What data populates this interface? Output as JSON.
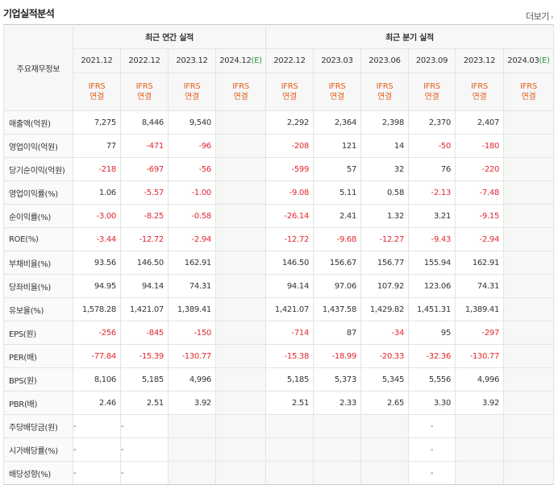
{
  "header": {
    "title": "기업실적분석",
    "more_label": "더보기",
    "more_arrow": "›"
  },
  "table": {
    "row_label_header": "주요재무정보",
    "groups": {
      "annual": "최근 연간 실적",
      "quarterly": "최근 분기 실적"
    },
    "annual_periods": [
      "2021.12",
      "2022.12",
      "2023.12",
      "2024.12"
    ],
    "annual_est_suffix": "(E)",
    "quarter_periods": [
      "2022.12",
      "2023.03",
      "2023.06",
      "2023.09",
      "2023.12",
      "2024.03"
    ],
    "quarter_est_suffix": "(E)",
    "ifrs_line1": "IFRS",
    "ifrs_line2": "연결",
    "rows": [
      {
        "label": "매출액(억원)",
        "annual": [
          "7,275",
          "8,446",
          "9,540",
          ""
        ],
        "quarter": [
          "2,292",
          "2,364",
          "2,398",
          "2,370",
          "2,407",
          ""
        ]
      },
      {
        "label": "영업이익(억원)",
        "annual": [
          "77",
          "-471",
          "-96",
          ""
        ],
        "quarter": [
          "-208",
          "121",
          "14",
          "-50",
          "-180",
          ""
        ]
      },
      {
        "label": "당기순이익(억원)",
        "annual": [
          "-218",
          "-697",
          "-56",
          ""
        ],
        "quarter": [
          "-599",
          "57",
          "32",
          "76",
          "-220",
          ""
        ]
      },
      {
        "label": "영업이익률(%)",
        "annual": [
          "1.06",
          "-5.57",
          "-1.00",
          ""
        ],
        "quarter": [
          "-9.08",
          "5.11",
          "0.58",
          "-2.13",
          "-7.48",
          ""
        ]
      },
      {
        "label": "순이익률(%)",
        "annual": [
          "-3.00",
          "-8.25",
          "-0.58",
          ""
        ],
        "quarter": [
          "-26.14",
          "2.41",
          "1.32",
          "3.21",
          "-9.15",
          ""
        ]
      },
      {
        "label": "ROE(%)",
        "annual": [
          "-3.44",
          "-12.72",
          "-2.94",
          ""
        ],
        "quarter": [
          "-12.72",
          "-9.68",
          "-12.27",
          "-9.43",
          "-2.94",
          ""
        ]
      },
      {
        "label": "부채비율(%)",
        "annual": [
          "93.56",
          "146.50",
          "162.91",
          ""
        ],
        "quarter": [
          "146.50",
          "156.67",
          "156.77",
          "155.94",
          "162.91",
          ""
        ]
      },
      {
        "label": "당좌비율(%)",
        "annual": [
          "94.95",
          "94.14",
          "74.31",
          ""
        ],
        "quarter": [
          "94.14",
          "97.06",
          "107.92",
          "123.06",
          "74.31",
          ""
        ]
      },
      {
        "label": "유보율(%)",
        "annual": [
          "1,578.28",
          "1,421.07",
          "1,389.41",
          ""
        ],
        "quarter": [
          "1,421.07",
          "1,437.58",
          "1,429.82",
          "1,451.31",
          "1,389.41",
          ""
        ]
      },
      {
        "label": "EPS(원)",
        "annual": [
          "-256",
          "-845",
          "-150",
          ""
        ],
        "quarter": [
          "-714",
          "87",
          "-34",
          "95",
          "-297",
          ""
        ]
      },
      {
        "label": "PER(배)",
        "annual": [
          "-77.84",
          "-15.39",
          "-130.77",
          ""
        ],
        "quarter": [
          "-15.38",
          "-18.99",
          "-20.33",
          "-32.36",
          "-130.77",
          ""
        ]
      },
      {
        "label": "BPS(원)",
        "annual": [
          "8,106",
          "5,185",
          "4,996",
          ""
        ],
        "quarter": [
          "5,185",
          "5,373",
          "5,345",
          "5,556",
          "4,996",
          ""
        ]
      },
      {
        "label": "PBR(배)",
        "annual": [
          "2.46",
          "2.51",
          "3.92",
          ""
        ],
        "quarter": [
          "2.51",
          "2.33",
          "2.65",
          "3.30",
          "3.92",
          ""
        ]
      },
      {
        "label": "주당배당금(원)",
        "annual": [
          "-",
          "-",
          "",
          ""
        ],
        "quarter": [
          "",
          "",
          "",
          "-",
          "",
          ""
        ]
      },
      {
        "label": "시가배당률(%)",
        "annual": [
          "-",
          "-",
          "",
          ""
        ],
        "quarter": [
          "",
          "",
          "",
          "-",
          "",
          ""
        ]
      },
      {
        "label": "배당성향(%)",
        "annual": [
          "-",
          "-",
          "",
          ""
        ],
        "quarter": [
          "",
          "",
          "",
          "-",
          "",
          ""
        ]
      }
    ]
  }
}
